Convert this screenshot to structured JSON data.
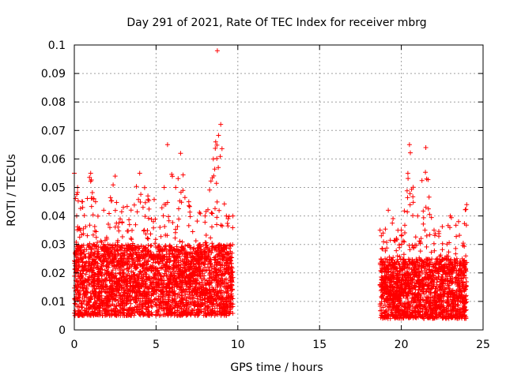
{
  "chart_data": {
    "type": "scatter",
    "title": "Day 291 of 2021, Rate Of TEC Index for receiver mbrg",
    "xlabel": "GPS time / hours",
    "ylabel": "ROTI / TECUs",
    "xlim": [
      0,
      25
    ],
    "ylim": [
      0,
      0.1
    ],
    "xticks": [
      0,
      5,
      10,
      15,
      20,
      25
    ],
    "yticks": [
      0,
      0.01,
      0.02,
      0.03,
      0.04,
      0.05,
      0.06,
      0.07,
      0.08,
      0.09,
      0.1
    ],
    "grid": true,
    "marker": "+",
    "color": "#ff0000",
    "segments": [
      {
        "x_start": 0.0,
        "x_end": 9.7,
        "base_min": 0.005,
        "base_max": 0.03
      },
      {
        "x_start": 18.7,
        "x_end": 24.0,
        "base_min": 0.004,
        "base_max": 0.025
      }
    ],
    "envelope": [
      {
        "x": 0.0,
        "y": 0.055
      },
      {
        "x": 0.2,
        "y": 0.05
      },
      {
        "x": 0.5,
        "y": 0.045
      },
      {
        "x": 1.0,
        "y": 0.055
      },
      {
        "x": 1.3,
        "y": 0.045
      },
      {
        "x": 1.8,
        "y": 0.042
      },
      {
        "x": 2.5,
        "y": 0.054
      },
      {
        "x": 3.0,
        "y": 0.043
      },
      {
        "x": 4.0,
        "y": 0.055
      },
      {
        "x": 4.5,
        "y": 0.047
      },
      {
        "x": 5.5,
        "y": 0.05
      },
      {
        "x": 5.7,
        "y": 0.065
      },
      {
        "x": 6.2,
        "y": 0.05
      },
      {
        "x": 6.5,
        "y": 0.062
      },
      {
        "x": 7.0,
        "y": 0.045
      },
      {
        "x": 8.0,
        "y": 0.04
      },
      {
        "x": 8.5,
        "y": 0.06
      },
      {
        "x": 8.75,
        "y": 0.098
      },
      {
        "x": 9.3,
        "y": 0.04
      },
      {
        "x": 9.7,
        "y": 0.04
      },
      {
        "x": 18.7,
        "y": 0.035
      },
      {
        "x": 19.2,
        "y": 0.042
      },
      {
        "x": 20.0,
        "y": 0.035
      },
      {
        "x": 20.5,
        "y": 0.065
      },
      {
        "x": 21.0,
        "y": 0.04
      },
      {
        "x": 21.5,
        "y": 0.064
      },
      {
        "x": 22.0,
        "y": 0.035
      },
      {
        "x": 23.0,
        "y": 0.04
      },
      {
        "x": 23.5,
        "y": 0.038
      },
      {
        "x": 24.0,
        "y": 0.044
      }
    ]
  }
}
